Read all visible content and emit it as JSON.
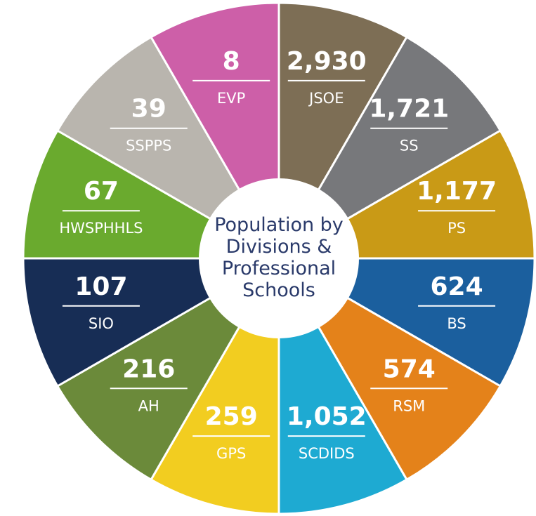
{
  "title_lines": [
    "Population by",
    "Divisions &",
    "Professional",
    "Schools"
  ],
  "segments": [
    {
      "value": "2,930",
      "name": "JSOE",
      "color": "#7d6e55"
    },
    {
      "value": "1,721",
      "name": "SS",
      "color": "#77787b"
    },
    {
      "value": "1,177",
      "name": "PS",
      "color": "#c99a16"
    },
    {
      "value": "624",
      "name": "BS",
      "color": "#1b5f9e"
    },
    {
      "value": "574",
      "name": "RSM",
      "color": "#e4821a"
    },
    {
      "value": "1,052",
      "name": "SCDIDS",
      "color": "#1eaad2"
    },
    {
      "value": "259",
      "name": "GPS",
      "color": "#f2cd20"
    },
    {
      "value": "216",
      "name": "AH",
      "color": "#6b8a3a"
    },
    {
      "value": "107",
      "name": "SIO",
      "color": "#172d55"
    },
    {
      "value": "67",
      "name": "HWSPHHLS",
      "color": "#6aaa2e"
    },
    {
      "value": "39",
      "name": "SSPPS",
      "color": "#b9b5ae"
    },
    {
      "value": "8",
      "name": "EVP",
      "color": "#cd5fa8"
    }
  ]
}
